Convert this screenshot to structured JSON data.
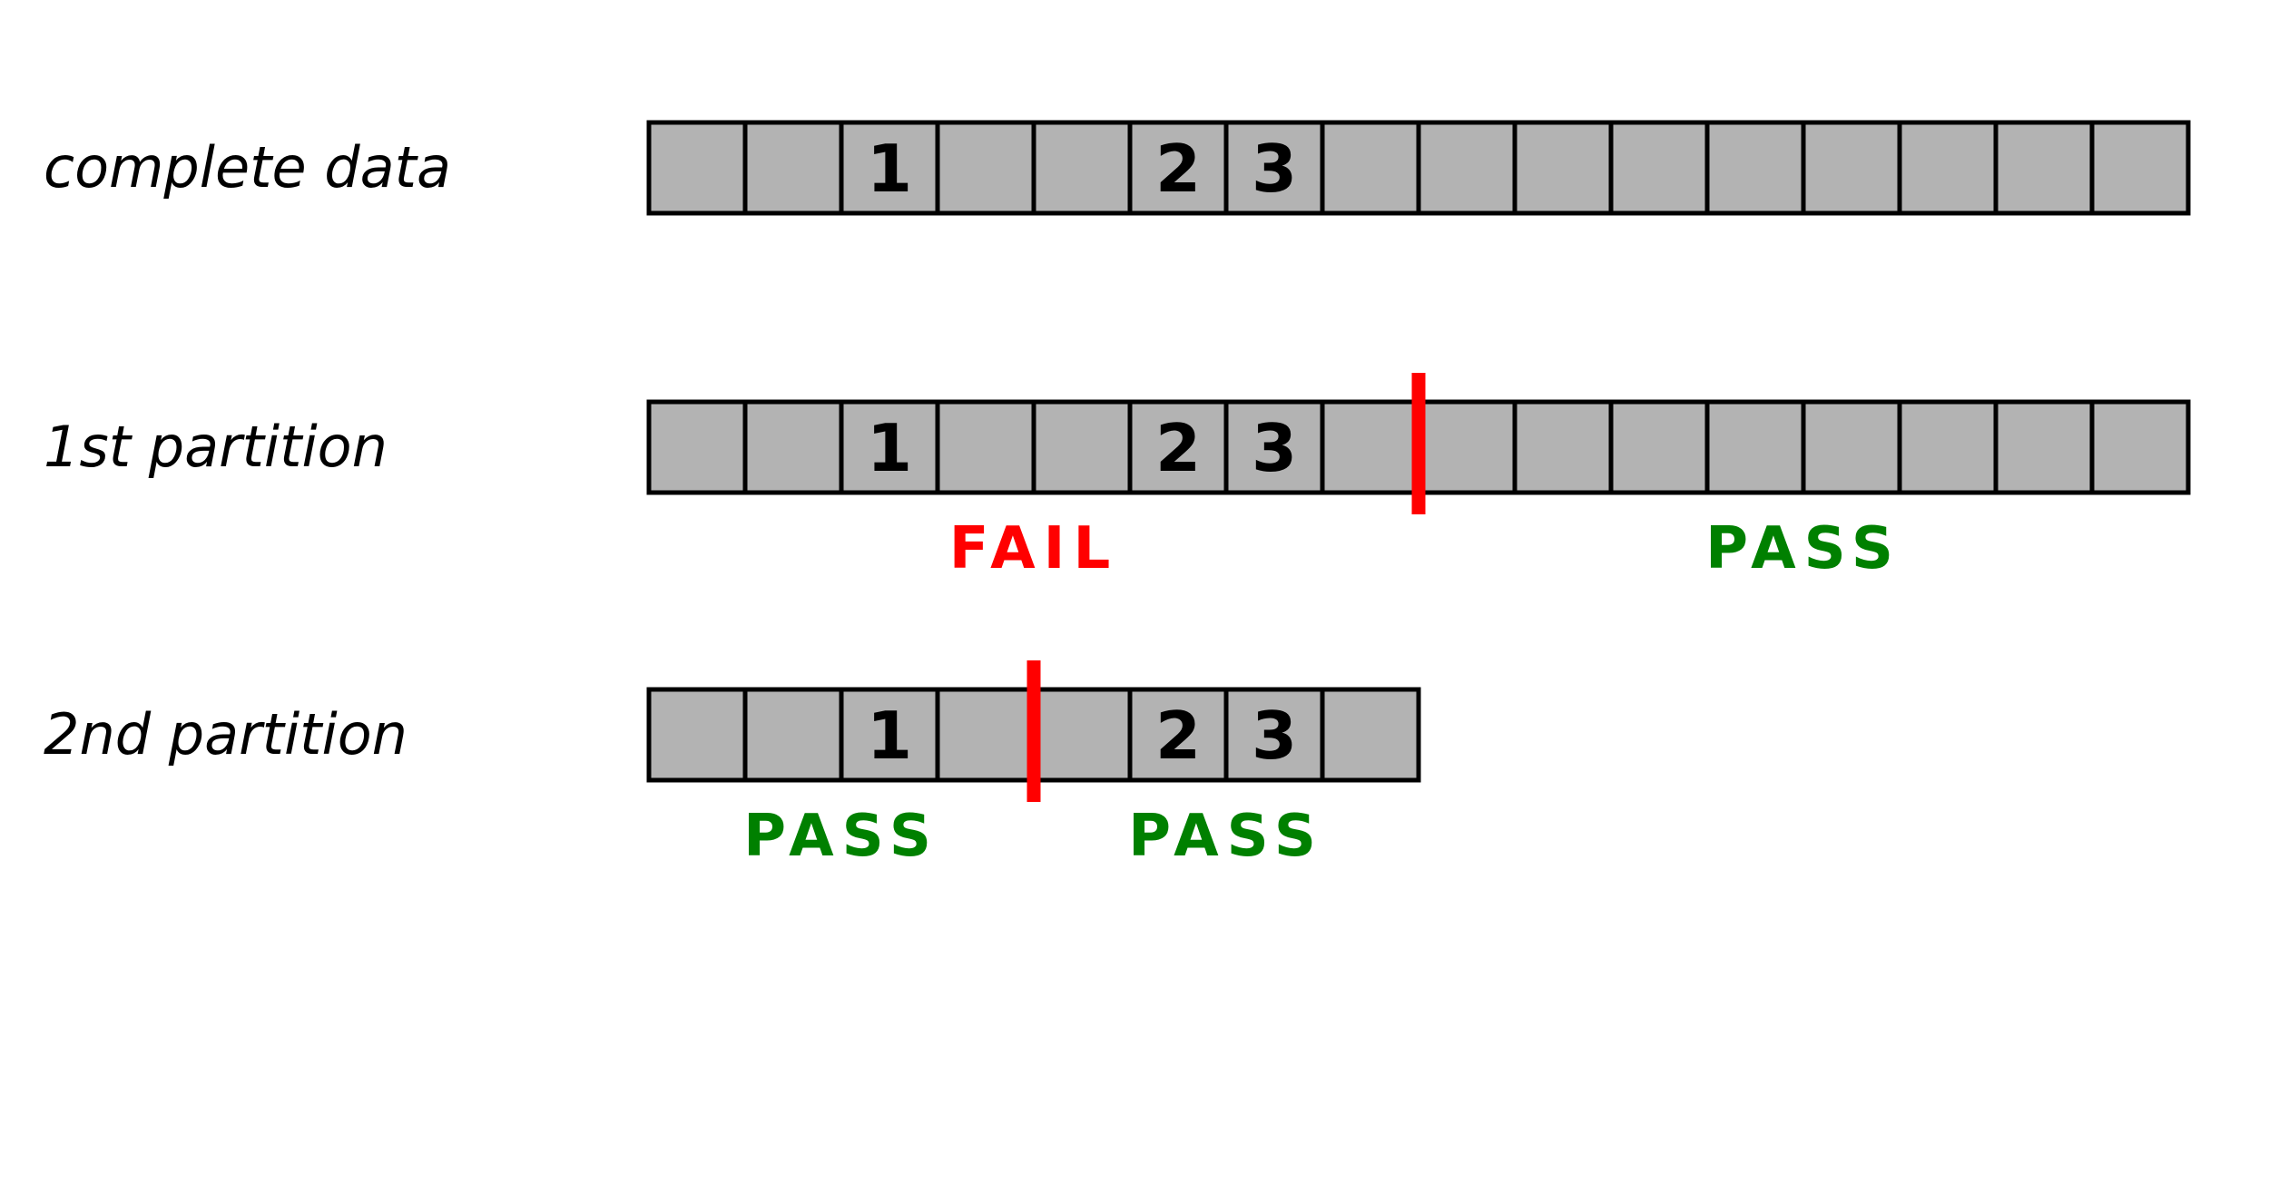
{
  "colors": {
    "cell_fill": "#b3b3b3",
    "cell_stroke": "#000000",
    "split_line": "#ff0000",
    "fail": "#ff0000",
    "pass": "#008000"
  },
  "rows": [
    {
      "label": "complete data",
      "cell_count": 16,
      "numbered_cells": [
        {
          "index": 2,
          "text": "1"
        },
        {
          "index": 5,
          "text": "2"
        },
        {
          "index": 6,
          "text": "3"
        }
      ],
      "split_after": null,
      "verdicts": []
    },
    {
      "label": "1st partition",
      "cell_count": 16,
      "numbered_cells": [
        {
          "index": 2,
          "text": "1"
        },
        {
          "index": 5,
          "text": "2"
        },
        {
          "index": 6,
          "text": "3"
        }
      ],
      "split_after": 8,
      "verdicts": [
        {
          "text": "FAIL",
          "status": "fail",
          "side": "left"
        },
        {
          "text": "PASS",
          "status": "pass",
          "side": "right"
        }
      ]
    },
    {
      "label": "2nd partition",
      "cell_count": 8,
      "numbered_cells": [
        {
          "index": 2,
          "text": "1"
        },
        {
          "index": 5,
          "text": "2"
        },
        {
          "index": 6,
          "text": "3"
        }
      ],
      "split_after": 4,
      "verdicts": [
        {
          "text": "PASS",
          "status": "pass",
          "side": "left"
        },
        {
          "text": "PASS",
          "status": "pass",
          "side": "right"
        }
      ]
    }
  ]
}
